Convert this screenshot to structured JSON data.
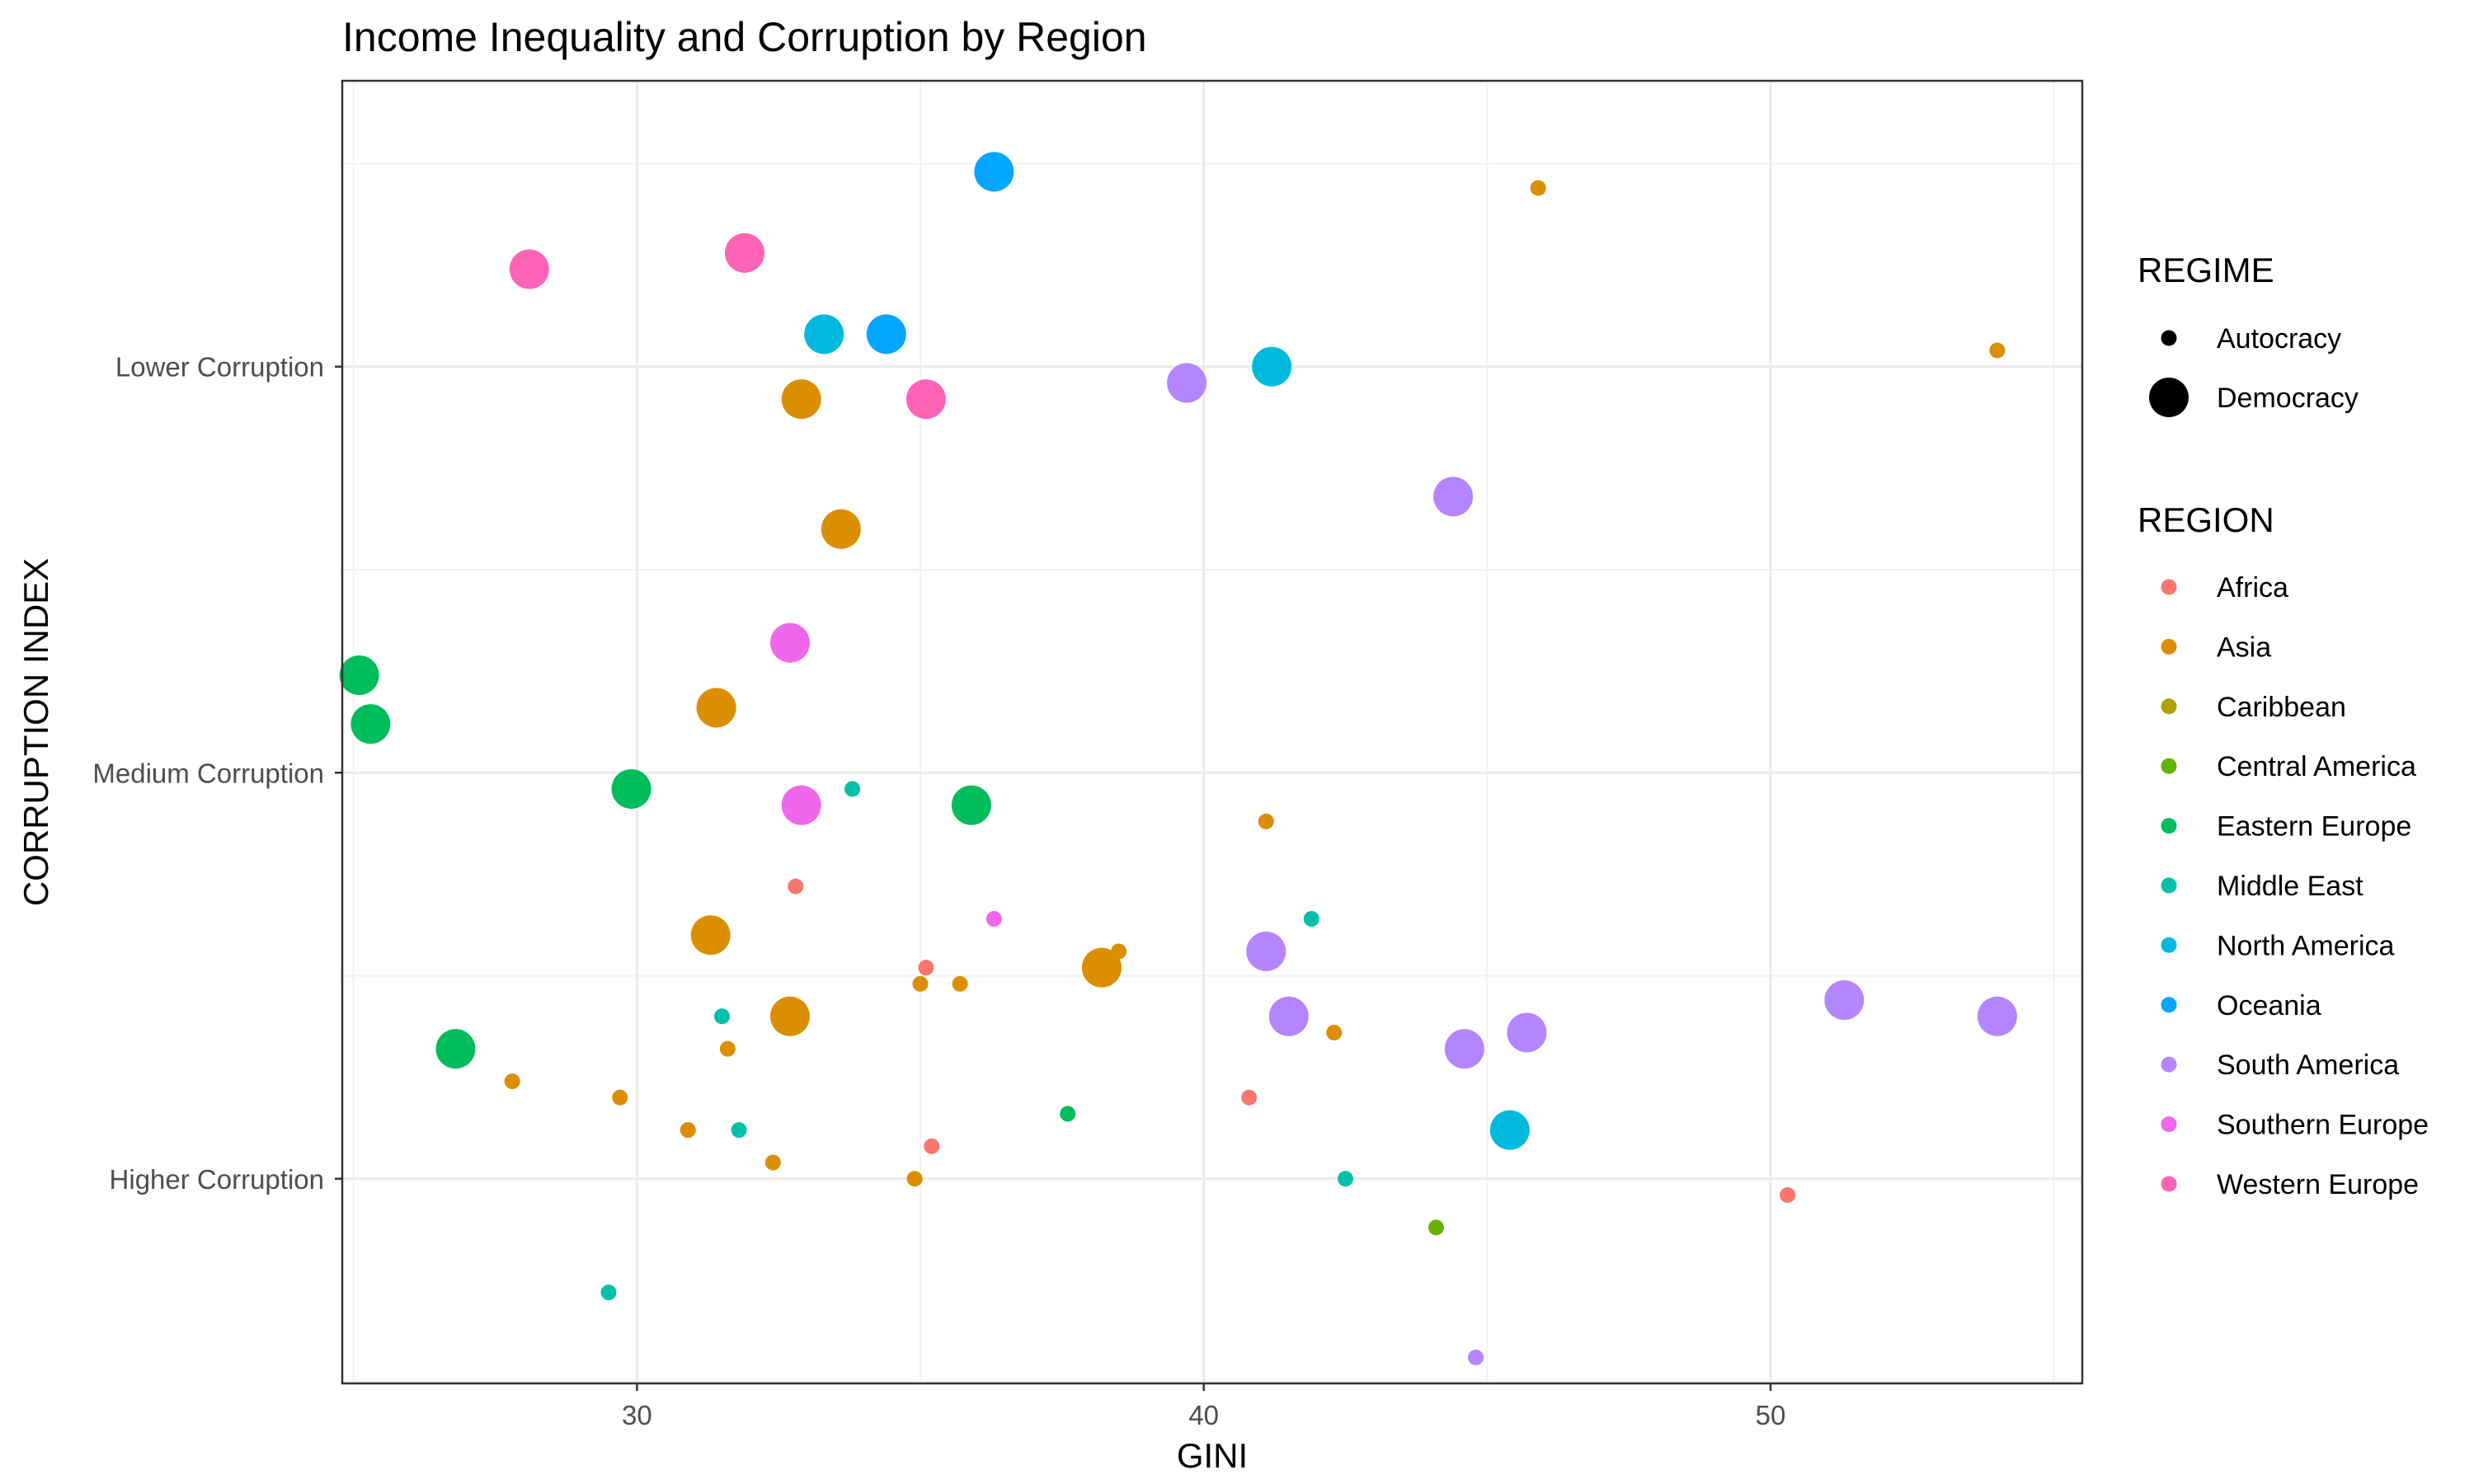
{
  "chart_data": {
    "type": "scatter",
    "title": "Income Inequality and Corruption by Region",
    "xlabel": "GINI",
    "ylabel": "CORRUPTION INDEX",
    "x_ticks": [
      30,
      40,
      50
    ],
    "y_ticks": [
      {
        "value": 15,
        "label": "Higher Corruption"
      },
      {
        "value": 40,
        "label": "Medium Corruption"
      },
      {
        "value": 65,
        "label": "Lower Corruption"
      }
    ],
    "xlim": [
      24.8,
      55.5
    ],
    "ylim": [
      2.4,
      82.6
    ],
    "grid": true,
    "legend_position": "right",
    "size_legend": {
      "title": "REGIME",
      "entries": [
        {
          "name": "Autocracy",
          "size": "small"
        },
        {
          "name": "Democracy",
          "size": "large"
        }
      ]
    },
    "color_legend": {
      "title": "REGION",
      "entries": [
        {
          "name": "Africa",
          "color": "#F8766D"
        },
        {
          "name": "Asia",
          "color": "#DB8E00"
        },
        {
          "name": "Caribbean",
          "color": "#AEA200"
        },
        {
          "name": "Central America",
          "color": "#64B200"
        },
        {
          "name": "Eastern Europe",
          "color": "#00BD5C"
        },
        {
          "name": "Middle East",
          "color": "#00C1A7"
        },
        {
          "name": "North America",
          "color": "#00BADE"
        },
        {
          "name": "Oceania",
          "color": "#00A6FF"
        },
        {
          "name": "South America",
          "color": "#B385FF"
        },
        {
          "name": "Southern Europe",
          "color": "#EF67EB"
        },
        {
          "name": "Western Europe",
          "color": "#FF63B6"
        }
      ]
    },
    "points": [
      {
        "x": 36.3,
        "y": 77,
        "region": "Oceania",
        "regime": "Democracy"
      },
      {
        "x": 45.9,
        "y": 76,
        "region": "Asia",
        "regime": "Autocracy"
      },
      {
        "x": 28.1,
        "y": 71,
        "region": "Western Europe",
        "regime": "Democracy"
      },
      {
        "x": 31.9,
        "y": 72,
        "region": "Western Europe",
        "regime": "Democracy"
      },
      {
        "x": 33.3,
        "y": 67,
        "region": "North America",
        "regime": "Democracy"
      },
      {
        "x": 34.4,
        "y": 67,
        "region": "Oceania",
        "regime": "Democracy"
      },
      {
        "x": 54.0,
        "y": 66,
        "region": "Asia",
        "regime": "Autocracy"
      },
      {
        "x": 41.2,
        "y": 65,
        "region": "North America",
        "regime": "Democracy"
      },
      {
        "x": 39.7,
        "y": 64,
        "region": "South America",
        "regime": "Democracy"
      },
      {
        "x": 32.9,
        "y": 63,
        "region": "Asia",
        "regime": "Democracy"
      },
      {
        "x": 35.1,
        "y": 63,
        "region": "Western Europe",
        "regime": "Democracy"
      },
      {
        "x": 44.4,
        "y": 57,
        "region": "South America",
        "regime": "Democracy"
      },
      {
        "x": 33.6,
        "y": 55,
        "region": "Asia",
        "regime": "Democracy"
      },
      {
        "x": 32.7,
        "y": 48,
        "region": "Southern Europe",
        "regime": "Democracy"
      },
      {
        "x": 25.1,
        "y": 46,
        "region": "Eastern Europe",
        "regime": "Democracy"
      },
      {
        "x": 25.3,
        "y": 43,
        "region": "Eastern Europe",
        "regime": "Democracy"
      },
      {
        "x": 31.4,
        "y": 44,
        "region": "Asia",
        "regime": "Democracy"
      },
      {
        "x": 29.9,
        "y": 39,
        "region": "Eastern Europe",
        "regime": "Democracy"
      },
      {
        "x": 33.8,
        "y": 39,
        "region": "Middle East",
        "regime": "Autocracy"
      },
      {
        "x": 32.9,
        "y": 38,
        "region": "Southern Europe",
        "regime": "Democracy"
      },
      {
        "x": 35.9,
        "y": 38,
        "region": "Eastern Europe",
        "regime": "Democracy"
      },
      {
        "x": 41.1,
        "y": 37,
        "region": "Asia",
        "regime": "Autocracy"
      },
      {
        "x": 32.8,
        "y": 33,
        "region": "Africa",
        "regime": "Autocracy"
      },
      {
        "x": 36.3,
        "y": 31,
        "region": "Southern Europe",
        "regime": "Autocracy"
      },
      {
        "x": 41.9,
        "y": 31,
        "region": "Middle East",
        "regime": "Autocracy"
      },
      {
        "x": 31.3,
        "y": 30,
        "region": "Asia",
        "regime": "Democracy"
      },
      {
        "x": 41.1,
        "y": 29,
        "region": "South America",
        "regime": "Democracy"
      },
      {
        "x": 38.5,
        "y": 29,
        "region": "Asia",
        "regime": "Autocracy"
      },
      {
        "x": 38.2,
        "y": 28,
        "region": "Asia",
        "regime": "Democracy"
      },
      {
        "x": 35.1,
        "y": 28,
        "region": "Africa",
        "regime": "Autocracy"
      },
      {
        "x": 35.0,
        "y": 27,
        "region": "Asia",
        "regime": "Autocracy"
      },
      {
        "x": 35.7,
        "y": 27,
        "region": "Asia",
        "regime": "Autocracy"
      },
      {
        "x": 51.3,
        "y": 26,
        "region": "South America",
        "regime": "Democracy"
      },
      {
        "x": 54.0,
        "y": 25,
        "region": "South America",
        "regime": "Democracy"
      },
      {
        "x": 32.7,
        "y": 25,
        "region": "Asia",
        "regime": "Democracy"
      },
      {
        "x": 31.5,
        "y": 25,
        "region": "Middle East",
        "regime": "Autocracy"
      },
      {
        "x": 41.5,
        "y": 25,
        "region": "South America",
        "regime": "Democracy"
      },
      {
        "x": 42.3,
        "y": 24,
        "region": "Asia",
        "regime": "Autocracy"
      },
      {
        "x": 45.7,
        "y": 24,
        "region": "South America",
        "regime": "Democracy"
      },
      {
        "x": 26.8,
        "y": 23,
        "region": "Eastern Europe",
        "regime": "Democracy"
      },
      {
        "x": 31.6,
        "y": 23,
        "region": "Asia",
        "regime": "Autocracy"
      },
      {
        "x": 44.6,
        "y": 23,
        "region": "South America",
        "regime": "Democracy"
      },
      {
        "x": 27.8,
        "y": 21,
        "region": "Asia",
        "regime": "Autocracy"
      },
      {
        "x": 29.7,
        "y": 20,
        "region": "Asia",
        "regime": "Autocracy"
      },
      {
        "x": 40.8,
        "y": 20,
        "region": "Africa",
        "regime": "Autocracy"
      },
      {
        "x": 37.6,
        "y": 19,
        "region": "Eastern Europe",
        "regime": "Autocracy"
      },
      {
        "x": 30.9,
        "y": 18,
        "region": "Asia",
        "regime": "Autocracy"
      },
      {
        "x": 31.8,
        "y": 18,
        "region": "Middle East",
        "regime": "Autocracy"
      },
      {
        "x": 45.4,
        "y": 18,
        "region": "North America",
        "regime": "Democracy"
      },
      {
        "x": 35.2,
        "y": 17,
        "region": "Africa",
        "regime": "Autocracy"
      },
      {
        "x": 32.4,
        "y": 16,
        "region": "Asia",
        "regime": "Autocracy"
      },
      {
        "x": 34.9,
        "y": 15,
        "region": "Asia",
        "regime": "Autocracy"
      },
      {
        "x": 42.5,
        "y": 15,
        "region": "Middle East",
        "regime": "Autocracy"
      },
      {
        "x": 50.3,
        "y": 14,
        "region": "Africa",
        "regime": "Autocracy"
      },
      {
        "x": 44.1,
        "y": 12,
        "region": "Central America",
        "regime": "Autocracy"
      },
      {
        "x": 29.5,
        "y": 8,
        "region": "Middle East",
        "regime": "Autocracy"
      },
      {
        "x": 44.8,
        "y": 4,
        "region": "South America",
        "regime": "Autocracy"
      }
    ]
  }
}
